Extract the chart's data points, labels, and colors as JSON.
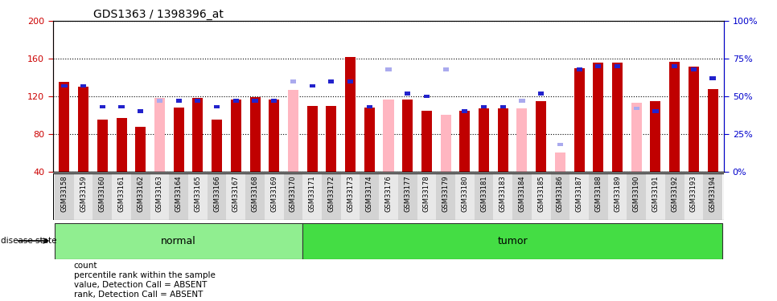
{
  "title": "GDS1363 / 1398396_at",
  "samples": [
    "GSM33158",
    "GSM33159",
    "GSM33160",
    "GSM33161",
    "GSM33162",
    "GSM33163",
    "GSM33164",
    "GSM33165",
    "GSM33166",
    "GSM33167",
    "GSM33168",
    "GSM33169",
    "GSM33170",
    "GSM33171",
    "GSM33172",
    "GSM33173",
    "GSM33174",
    "GSM33176",
    "GSM33177",
    "GSM33178",
    "GSM33179",
    "GSM33180",
    "GSM33181",
    "GSM33183",
    "GSM33184",
    "GSM33185",
    "GSM33186",
    "GSM33187",
    "GSM33188",
    "GSM33189",
    "GSM33190",
    "GSM33191",
    "GSM33192",
    "GSM33193",
    "GSM33194"
  ],
  "count_values": [
    135,
    130,
    95,
    97,
    88,
    118,
    108,
    118,
    95,
    117,
    119,
    117,
    127,
    110,
    110,
    162,
    108,
    117,
    117,
    105,
    100,
    105,
    107,
    107,
    107,
    115,
    60,
    150,
    156,
    156,
    113,
    115,
    157,
    152,
    128
  ],
  "percentile_values": [
    57,
    57,
    43,
    43,
    40,
    47,
    47,
    47,
    43,
    47,
    47,
    47,
    60,
    57,
    60,
    60,
    43,
    68,
    52,
    50,
    68,
    40,
    43,
    43,
    47,
    52,
    18,
    68,
    70,
    70,
    42,
    40,
    70,
    68,
    62
  ],
  "absent": [
    false,
    false,
    false,
    false,
    false,
    true,
    false,
    false,
    false,
    false,
    false,
    false,
    true,
    false,
    false,
    false,
    false,
    true,
    false,
    false,
    true,
    false,
    false,
    false,
    true,
    false,
    true,
    false,
    false,
    false,
    true,
    false,
    false,
    false,
    false
  ],
  "group": [
    "normal",
    "normal",
    "normal",
    "normal",
    "normal",
    "normal",
    "normal",
    "normal",
    "normal",
    "normal",
    "normal",
    "normal",
    "normal",
    "tumor",
    "tumor",
    "tumor",
    "tumor",
    "tumor",
    "tumor",
    "tumor",
    "tumor",
    "tumor",
    "tumor",
    "tumor",
    "tumor",
    "tumor",
    "tumor",
    "tumor",
    "tumor",
    "tumor",
    "tumor",
    "tumor",
    "tumor",
    "tumor",
    "tumor"
  ],
  "normal_label": "normal",
  "tumor_label": "tumor",
  "disease_state_label": "disease state",
  "ylim_left": [
    40,
    200
  ],
  "ylim_right": [
    0,
    100
  ],
  "yticks_left": [
    40,
    80,
    120,
    160,
    200
  ],
  "yticks_right": [
    0,
    25,
    50,
    75,
    100
  ],
  "bar_color_present": "#C00000",
  "bar_color_absent": "#FFB6C1",
  "rank_color_present": "#2222CC",
  "rank_color_absent": "#AAAAEE",
  "normal_bg": "#90EE90",
  "tumor_bg": "#44DD44",
  "left_axis_color": "#CC0000",
  "right_axis_color": "#0000CC",
  "grid_color": "black",
  "legend_labels": [
    "count",
    "percentile rank within the sample",
    "value, Detection Call = ABSENT",
    "rank, Detection Call = ABSENT"
  ],
  "legend_colors": [
    "#C00000",
    "#2222CC",
    "#FFB6C1",
    "#AAAAEE"
  ]
}
